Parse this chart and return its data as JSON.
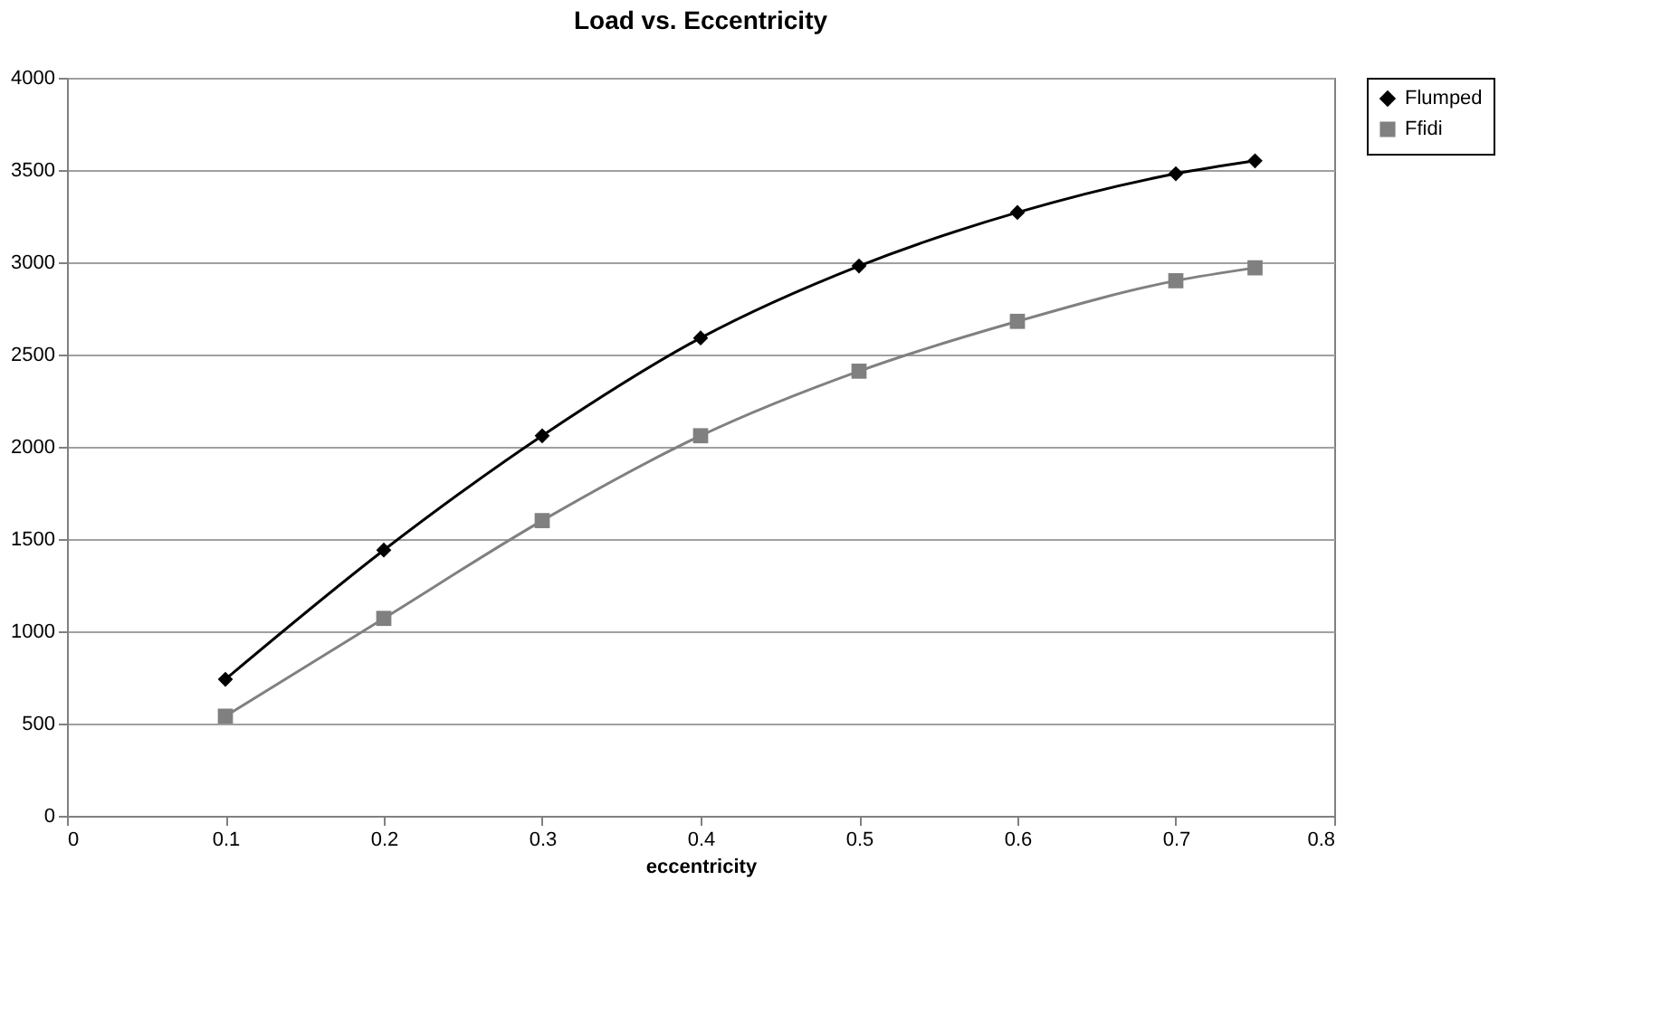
{
  "chart_data": {
    "type": "line",
    "title": "Load vs. Eccentricity",
    "xlabel": "eccentricity",
    "x": [
      0.1,
      0.2,
      0.3,
      0.4,
      0.5,
      0.6,
      0.7,
      0.75
    ],
    "series": [
      {
        "name": "Flumped",
        "color": "#000000",
        "marker": "diamond",
        "values": [
          740,
          1440,
          2060,
          2590,
          2980,
          3270,
          3480,
          3550
        ]
      },
      {
        "name": "Ffidi",
        "color": "#808080",
        "marker": "square",
        "values": [
          540,
          1070,
          1600,
          2060,
          2410,
          2680,
          2900,
          2970
        ]
      }
    ],
    "xlim": [
      0,
      0.8
    ],
    "xticks": [
      0,
      0.1,
      0.2,
      0.3,
      0.4,
      0.5,
      0.6,
      0.7,
      0.8
    ],
    "ylim": [
      0,
      4000
    ],
    "yticks": [
      0,
      500,
      1000,
      1500,
      2000,
      2500,
      3000,
      3500,
      4000
    ],
    "grid": "y",
    "legend": "right",
    "line_style": "solid"
  }
}
